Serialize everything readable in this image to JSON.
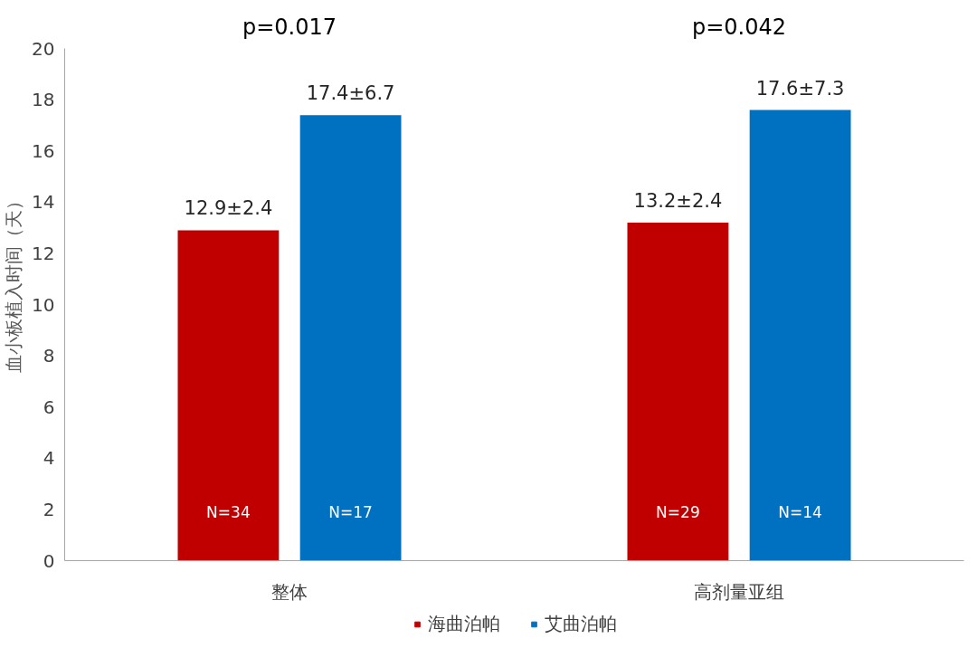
{
  "chart_data": {
    "type": "bar",
    "categories": [
      "整体",
      "高剂量亚组"
    ],
    "ylabel": "血小板植入时间（天）",
    "series": [
      {
        "name": "海曲泊帕",
        "color": "#c00000",
        "values": [
          12.9,
          13.2
        ],
        "value_labels": [
          "12.9±2.4",
          "13.2±2.4"
        ]
      },
      {
        "name": "艾曲泊帕",
        "color": "#0070c0",
        "values": [
          17.4,
          17.6
        ],
        "value_labels": [
          "17.4±6.7",
          "17.6±7.3"
        ]
      }
    ],
    "ylim": [
      0,
      20
    ],
    "yticks": [
      0,
      2,
      4,
      6,
      8,
      10,
      12,
      14,
      16,
      18,
      20
    ],
    "grid": false,
    "legend": "bottom",
    "annotations": [
      "p=0.017",
      "p=0.042",
      "N=34",
      "N=29",
      "N=17",
      "N=14"
    ]
  }
}
